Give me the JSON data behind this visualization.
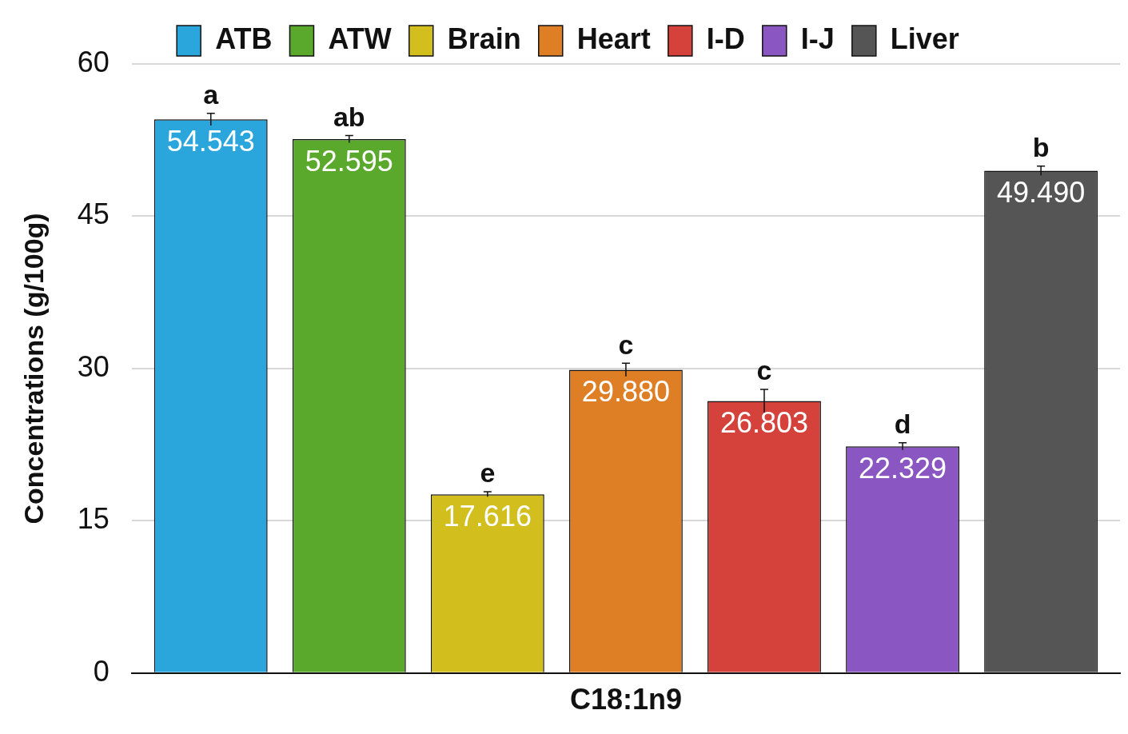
{
  "chart_data": {
    "type": "bar",
    "categories": [
      "C18:1n9"
    ],
    "ylabel": "Concentrations (g/100g)",
    "ylim": [
      0,
      60
    ],
    "yticks": [
      0,
      15,
      30,
      45,
      60
    ],
    "grid": "y",
    "legend": "top",
    "series": [
      {
        "name": "ATB",
        "color": "#2aa6dd",
        "values": [
          54.543
        ],
        "value_labels": [
          "54.543"
        ],
        "errors": [
          0.6
        ]
      },
      {
        "name": "ATW",
        "color": "#5aa82c",
        "values": [
          52.595
        ],
        "value_labels": [
          "52.595"
        ],
        "errors": [
          0.35
        ]
      },
      {
        "name": "Brain",
        "color": "#d2bf1e",
        "values": [
          17.616
        ],
        "value_labels": [
          "17.616"
        ],
        "errors": [
          0.25
        ]
      },
      {
        "name": "Heart",
        "color": "#de7e25",
        "values": [
          29.88
        ],
        "value_labels": [
          "29.880"
        ],
        "errors": [
          0.65
        ]
      },
      {
        "name": "I-D",
        "color": "#d4423b",
        "values": [
          26.803
        ],
        "value_labels": [
          "26.803"
        ],
        "errors": [
          1.15
        ]
      },
      {
        "name": "I-J",
        "color": "#8956c2",
        "values": [
          22.329
        ],
        "value_labels": [
          "22.329"
        ],
        "errors": [
          0.35
        ]
      },
      {
        "name": "Liver",
        "color": "#555555",
        "values": [
          49.49
        ],
        "value_labels": [
          "49.490"
        ],
        "errors": [
          0.45
        ]
      }
    ],
    "annotations": [
      "a",
      "ab",
      "e",
      "c",
      "c",
      "d",
      "b"
    ]
  }
}
